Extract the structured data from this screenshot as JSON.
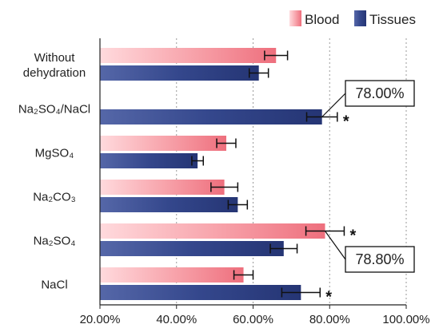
{
  "chart_data": {
    "type": "bar",
    "orientation": "horizontal",
    "categories": [
      "Without\ndehydration",
      "Na₂SO₄/NaCl",
      "MgSO₄",
      "Na₂CO₃",
      "Na₂SO₄",
      "NaCl"
    ],
    "series": [
      {
        "name": "Blood",
        "color": "#f07a86",
        "values": [
          66.0,
          null,
          53.0,
          52.5,
          78.8,
          57.5
        ],
        "errors": [
          3.0,
          null,
          2.5,
          3.5,
          5.0,
          2.5
        ]
      },
      {
        "name": "Tissues",
        "color": "#2b3c80",
        "values": [
          61.5,
          78.0,
          45.5,
          56.0,
          68.0,
          72.5
        ],
        "errors": [
          2.5,
          4.0,
          1.5,
          2.5,
          3.5,
          5.0
        ]
      }
    ],
    "significance": [
      {
        "category": "Na₂SO₄/NaCl",
        "series": "Tissues",
        "label": "*"
      },
      {
        "category": "Na₂SO₄",
        "series": "Blood",
        "label": "*"
      },
      {
        "category": "NaCl",
        "series": "Tissues",
        "label": "*"
      }
    ],
    "callouts": [
      {
        "text": "78.00%",
        "category": "Na₂SO₄/NaCl",
        "series": "Tissues"
      },
      {
        "text": "78.80%",
        "category": "Na₂SO₄",
        "series": "Blood"
      }
    ],
    "xlim": [
      20,
      100
    ],
    "xticks": [
      20,
      40,
      60,
      80,
      100
    ],
    "xtick_labels": [
      "20.00%",
      "40.00%",
      "60.00%",
      "80.00%",
      "100.00%"
    ],
    "grid": "vertical dotted",
    "legend_position": "top-right",
    "title": "",
    "xlabel": "",
    "ylabel": ""
  }
}
